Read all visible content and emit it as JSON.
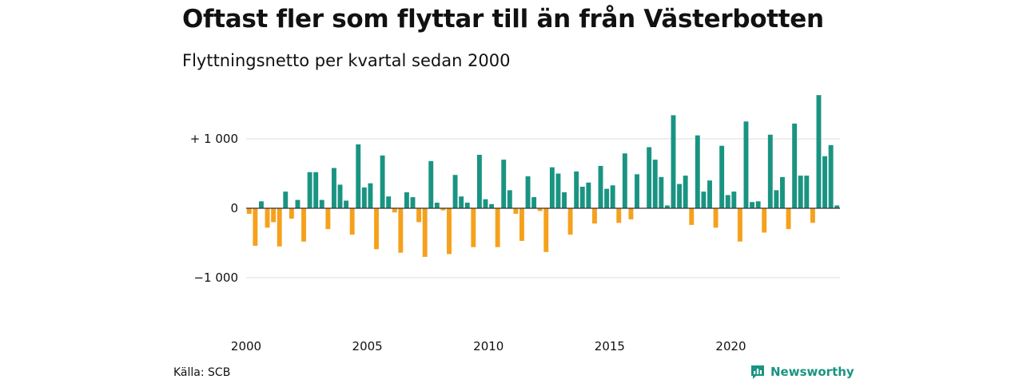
{
  "title": "Oftast fler som flyttar till än från Västerbotten",
  "subtitle": "Flyttningsnetto per kvartal sedan 2000",
  "source": "Källa: SCB",
  "brand": {
    "name": "Newsworthy",
    "icon": "newsworthy-logo-icon",
    "color": "#1a9482"
  },
  "chart_data": {
    "type": "bar",
    "title": "Oftast fler som flyttar till än från Västerbotten",
    "subtitle": "Flyttningsnetto per kvartal sedan 2000",
    "xlabel": "",
    "ylabel": "",
    "x_start": "2000 Q1",
    "frequency": "quarterly",
    "ylim": [
      -1400,
      1650
    ],
    "yticks": [
      {
        "value": 1000,
        "label": "+ 1 000"
      },
      {
        "value": 0,
        "label": "0"
      },
      {
        "value": -1000,
        "label": "−1 000"
      }
    ],
    "xticks": [
      {
        "index": 0,
        "label": "2000"
      },
      {
        "index": 20,
        "label": "2005"
      },
      {
        "index": 40,
        "label": "2010"
      },
      {
        "index": 60,
        "label": "2015"
      },
      {
        "index": 80,
        "label": "2020"
      }
    ],
    "grid": true,
    "legend": "none",
    "colors": {
      "positive": "#1a9482",
      "negative": "#f5a11c",
      "grid": "#dddddd",
      "zero_line": "#333333"
    },
    "values": [
      -80,
      -540,
      100,
      -280,
      -200,
      -550,
      240,
      -150,
      120,
      -480,
      520,
      520,
      120,
      -300,
      580,
      340,
      110,
      -380,
      920,
      300,
      360,
      -590,
      760,
      170,
      -60,
      -640,
      230,
      160,
      -200,
      -700,
      680,
      80,
      -30,
      -660,
      480,
      170,
      80,
      -560,
      770,
      130,
      60,
      -560,
      700,
      260,
      -80,
      -470,
      460,
      160,
      -40,
      -630,
      590,
      500,
      230,
      -380,
      530,
      310,
      370,
      -220,
      610,
      280,
      330,
      -210,
      790,
      -160,
      490,
      0,
      880,
      700,
      450,
      40,
      1340,
      350,
      470,
      -240,
      1050,
      240,
      400,
      -280,
      900,
      190,
      240,
      -480,
      1250,
      90,
      100,
      -350,
      1060,
      260,
      450,
      -300,
      1220,
      470,
      470,
      -210,
      1630,
      750,
      910,
      40
    ]
  }
}
